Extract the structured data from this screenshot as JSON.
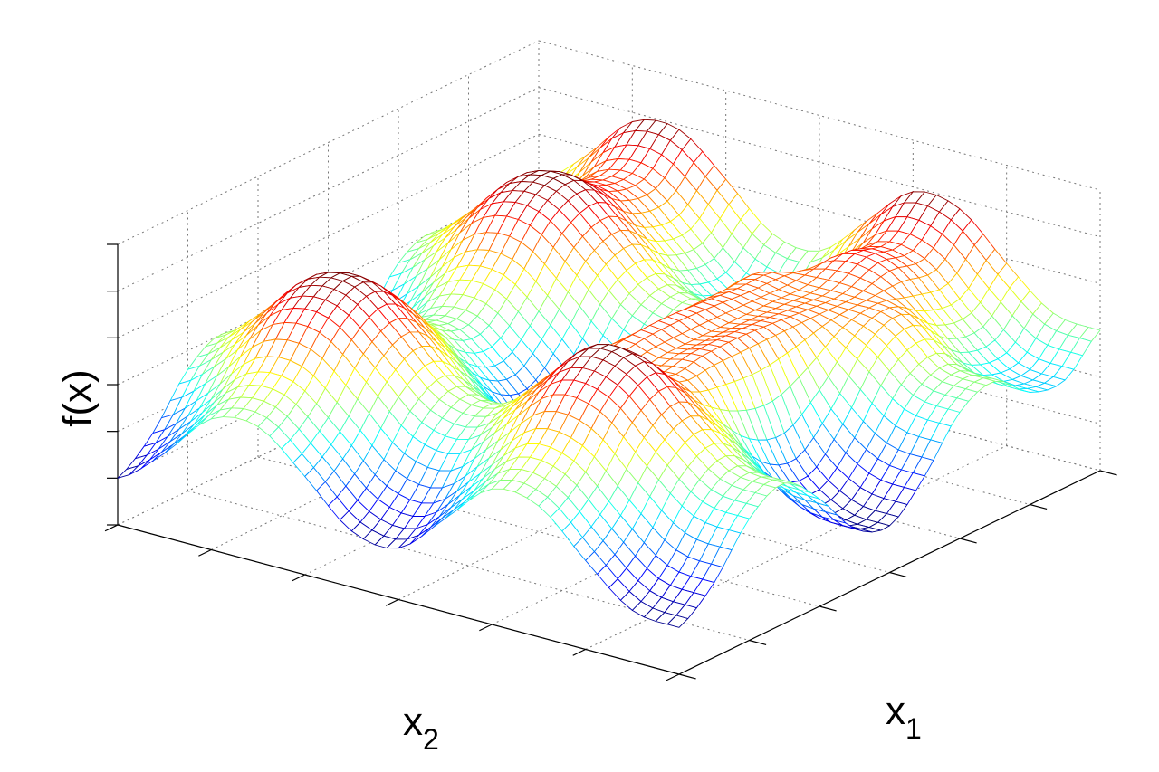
{
  "chart_data": {
    "type": "mesh",
    "x": [
      0,
      0.5,
      1,
      1.5,
      2,
      2.5,
      3,
      3.5,
      4,
      4.5,
      5,
      5.5,
      6
    ],
    "y": [
      0,
      0.5,
      1,
      1.5,
      2,
      2.5,
      3,
      3.5,
      4,
      4.5,
      5,
      5.5,
      6
    ],
    "z": [
      [
        1,
        1.6,
        2.6,
        3,
        2.3,
        1.3,
        1,
        1.7,
        2.7,
        3,
        2.4,
        2.3,
        3
      ],
      [
        1.8,
        2.4,
        3.4,
        3.8,
        3.1,
        2.1,
        1.8,
        2.5,
        3.5,
        3.8,
        3.2,
        3.1,
        3.8
      ],
      [
        2.8,
        3.4,
        4.4,
        4.8,
        4.1,
        3.1,
        2.8,
        3.5,
        4.5,
        4.8,
        4.2,
        4.1,
        4.8
      ],
      [
        2.9,
        3.5,
        4.5,
        4.9,
        4.2,
        3.2,
        2.9,
        3.6,
        4.6,
        4.9,
        4.3,
        4.2,
        4.9
      ],
      [
        2.1,
        2.7,
        3.7,
        4.1,
        3.4,
        2.4,
        2.1,
        2.8,
        3.8,
        4.1,
        3.5,
        3.4,
        4.1
      ],
      [
        1.2,
        1.8,
        2.8,
        3.2,
        2.5,
        1.5,
        1.2,
        1.9,
        2.9,
        3.2,
        2.6,
        2.5,
        3.2
      ],
      [
        1.1,
        1.7,
        2.7,
        3.1,
        2.4,
        1.4,
        1.1,
        1.8,
        2.8,
        3.1,
        2.5,
        2.4,
        3.1
      ],
      [
        2,
        2.6,
        3.6,
        4,
        4,
        4,
        4,
        4,
        4,
        4,
        3.4,
        3.3,
        4
      ],
      [
        2.9,
        3.5,
        4.5,
        4.9,
        4,
        4,
        4,
        4,
        4,
        4,
        4.3,
        4.2,
        4.9
      ],
      [
        2.8,
        3.4,
        4.4,
        4.8,
        4,
        4,
        4,
        4,
        4,
        4,
        4.2,
        4.1,
        4.8
      ],
      [
        1.9,
        2.5,
        3.5,
        3.9,
        3.2,
        2.2,
        1.9,
        2.6,
        3.6,
        3.9,
        3.3,
        3.2,
        3.9
      ],
      [
        1.1,
        1.7,
        2.7,
        3.1,
        2.4,
        1.4,
        1.1,
        1.8,
        2.8,
        3.1,
        2.5,
        2.4,
        3.1
      ],
      [
        1,
        1.6,
        2.6,
        3,
        2.3,
        1.3,
        1,
        1.7,
        2.7,
        3,
        2.4,
        2.3,
        3
      ]
    ],
    "xlim": [
      0,
      6
    ],
    "xticks": [
      0,
      1,
      2,
      3,
      4,
      5,
      6
    ],
    "ylim": [
      0,
      6
    ],
    "yticks": [
      0,
      1,
      2,
      3,
      4,
      5,
      6
    ],
    "zlim": [
      0,
      6
    ],
    "zticks": [
      0,
      1,
      2,
      3,
      4,
      5,
      6
    ],
    "xlabel": [
      "x",
      "1"
    ],
    "ylabel": [
      "x",
      "2"
    ],
    "zlabel": "f(x)",
    "grid": true,
    "colormap": "jet"
  }
}
